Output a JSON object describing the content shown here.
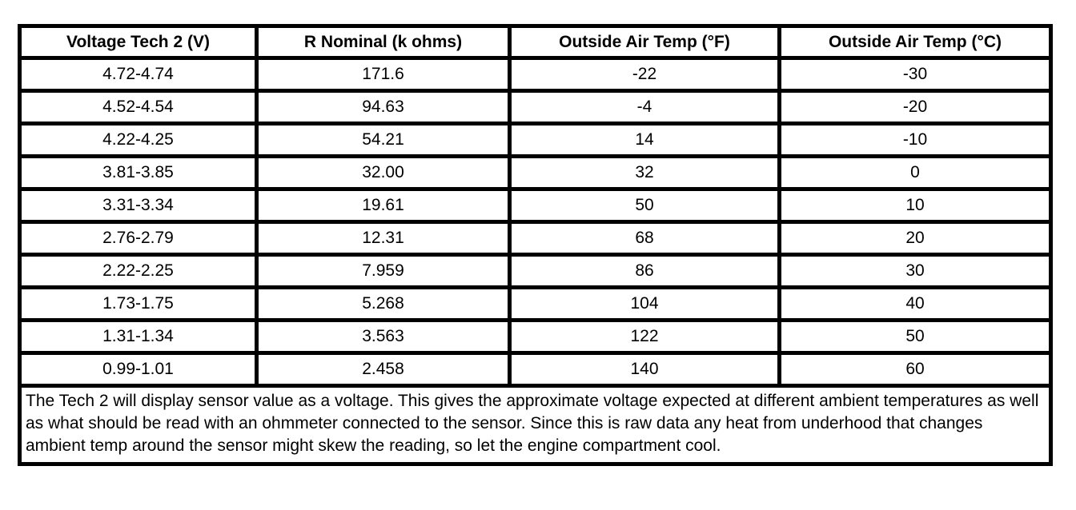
{
  "colors": {
    "border": "#000000",
    "text": "#000000",
    "background": "#ffffff"
  },
  "table": {
    "headers": [
      "Voltage Tech 2 (V)",
      "R Nominal (k ohms)",
      "Outside Air Temp (°F)",
      "Outside Air Temp (°C)"
    ],
    "rows": [
      [
        "4.72-4.74",
        "171.6",
        "-22",
        "-30"
      ],
      [
        "4.52-4.54",
        "94.63",
        "-4",
        "-20"
      ],
      [
        "4.22-4.25",
        "54.21",
        "14",
        "-10"
      ],
      [
        "3.81-3.85",
        "32.00",
        "32",
        "0"
      ],
      [
        "3.31-3.34",
        "19.61",
        "50",
        "10"
      ],
      [
        "2.76-2.79",
        "12.31",
        "68",
        "20"
      ],
      [
        "2.22-2.25",
        "7.959",
        "86",
        "30"
      ],
      [
        "1.73-1.75",
        "5.268",
        "104",
        "40"
      ],
      [
        "1.31-1.34",
        "3.563",
        "122",
        "50"
      ],
      [
        "0.99-1.01",
        "2.458",
        "140",
        "60"
      ]
    ],
    "note": "The Tech 2 will display sensor value as a voltage. This gives the approximate voltage expected at different ambient temperatures as well as what should be read with an ohmmeter connected to the sensor. Since this is raw data any heat from underhood that changes ambient temp around the sensor might skew the reading, so let the engine compartment cool."
  }
}
